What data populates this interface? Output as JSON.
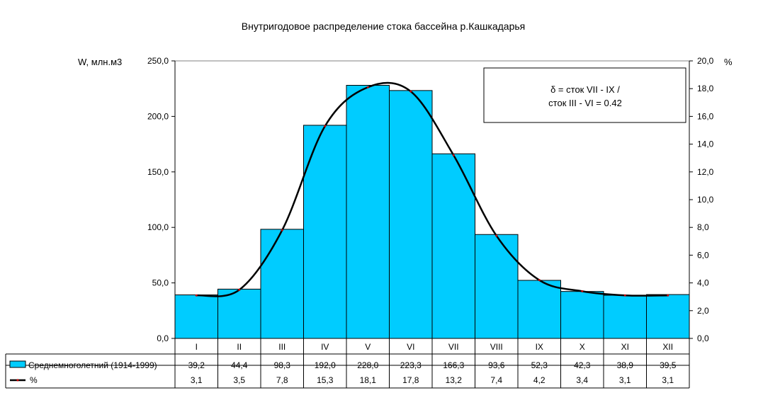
{
  "chart_data": {
    "type": "bar",
    "title": "Внутригодовое распределение стока бассейна р.Кашкадарья",
    "ylabel": "W, млн.м3",
    "y2label": "%",
    "ylim": [
      0,
      250
    ],
    "y2lim": [
      0,
      20
    ],
    "yticks": [
      0,
      50,
      100,
      150,
      200,
      250
    ],
    "y2ticks": [
      0,
      2,
      4,
      6,
      8,
      10,
      12,
      14,
      16,
      18,
      20
    ],
    "categories": [
      "I",
      "II",
      "III",
      "IV",
      "V",
      "VI",
      "VII",
      "VIII",
      "IX",
      "X",
      "XI",
      "XII"
    ],
    "series": [
      {
        "name": "Среднемноголетний (1914-1999)",
        "type": "bar",
        "axis": "left",
        "color": "#00ccff",
        "values": [
          39.2,
          44.4,
          98.3,
          192.0,
          228.0,
          223.3,
          166.3,
          93.6,
          52.3,
          42.3,
          38.9,
          39.5
        ]
      },
      {
        "name": "%",
        "type": "line",
        "axis": "right",
        "color": "#000000",
        "values": [
          3.1,
          3.5,
          7.8,
          15.3,
          18.1,
          17.8,
          13.2,
          7.4,
          4.2,
          3.4,
          3.1,
          3.1
        ]
      }
    ],
    "annotation": {
      "line1": "δ = сток VII - IX /",
      "line2": "сток III - VI = 0.42"
    },
    "grid": false,
    "legend": "data-table"
  }
}
